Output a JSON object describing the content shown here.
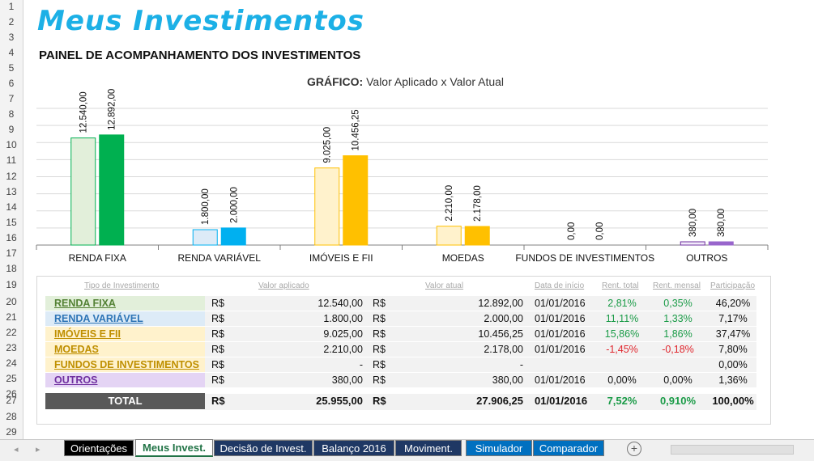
{
  "header": {
    "title": "Meus Investimentos",
    "subtitle": "PAINEL DE ACOMPANHAMENTO DOS INVESTIMENTOS",
    "chart_title_bold": "GRÁFICO:",
    "chart_title_rest": " Valor Aplicado x Valor Atual"
  },
  "row_numbers": [
    "1",
    "2",
    "3",
    "4",
    "5",
    "6",
    "7",
    "8",
    "9",
    "10",
    "11",
    "12",
    "13",
    "14",
    "15",
    "16",
    "17",
    "18",
    "19",
    "20",
    "21",
    "22",
    "23",
    "24",
    "25",
    "26",
    "27",
    "28",
    "29"
  ],
  "chart_data": {
    "type": "bar",
    "title": "GRÁFICO: Valor Aplicado x Valor Atual",
    "categories": [
      "RENDA FIXA",
      "RENDA VARIÁVEL",
      "IMÓVEIS E FII",
      "MOEDAS",
      "FUNDOS DE INVESTIMENTOS",
      "OUTROS"
    ],
    "series": [
      {
        "values": [
          12540.0,
          1800.0,
          9025.0,
          2210.0,
          0.0,
          380.0
        ]
      },
      {
        "values": [
          12892.0,
          2000.0,
          10456.25,
          2178.0,
          0.0,
          380.0
        ]
      }
    ],
    "labels": [
      [
        "12.540,00",
        "1.800,00",
        "9.025,00",
        "2.210,00",
        "0,00",
        "380,00"
      ],
      [
        "12.892,00",
        "2.000,00",
        "10.456,25",
        "2.178,00",
        "0,00",
        "380,00"
      ]
    ],
    "ylim": [
      0,
      16000
    ],
    "grid": true,
    "colors": {
      "applied_fill": [
        "#e2efda",
        "#ddebf7",
        "#fff2cc",
        "#fff2cc",
        "#ffffff",
        "#f2ebfa"
      ],
      "applied_stroke": [
        "#00b050",
        "#00b0f0",
        "#ffc000",
        "#ffc000",
        "#bfbfbf",
        "#7030a0"
      ],
      "current_fill": [
        "#00b050",
        "#00b0f0",
        "#ffc000",
        "#ffc000",
        "#ffffff",
        "#9966cc"
      ]
    }
  },
  "table": {
    "headers": {
      "tipo": "Tipo de Investimento",
      "aplicado": "Valor aplicado",
      "atual": "Valor atual",
      "data": "Data de início",
      "rent_total": "Rent. total",
      "rent_mensal": "Rent. mensal",
      "participacao": "Participação"
    },
    "rows": [
      {
        "tipo": "RENDA FIXA",
        "cur1": "R$",
        "aplicado": "12.540,00",
        "cur2": "R$",
        "atual": "12.892,00",
        "data": "01/01/2016",
        "rent_total": "2,81%",
        "rent_mensal": "0,35%",
        "participacao": "46,20%"
      },
      {
        "tipo": "RENDA VARIÁVEL",
        "cur1": "R$",
        "aplicado": "1.800,00",
        "cur2": "R$",
        "atual": "2.000,00",
        "data": "01/01/2016",
        "rent_total": "11,11%",
        "rent_mensal": "1,33%",
        "participacao": "7,17%"
      },
      {
        "tipo": "IMÓVEIS E FII",
        "cur1": "R$",
        "aplicado": "9.025,00",
        "cur2": "R$",
        "atual": "10.456,25",
        "data": "01/01/2016",
        "rent_total": "15,86%",
        "rent_mensal": "1,86%",
        "participacao": "37,47%"
      },
      {
        "tipo": "MOEDAS",
        "cur1": "R$",
        "aplicado": "2.210,00",
        "cur2": "R$",
        "atual": "2.178,00",
        "data": "01/01/2016",
        "rent_total": "-1,45%",
        "rent_mensal": "-0,18%",
        "participacao": "7,80%"
      },
      {
        "tipo": "FUNDOS DE INVESTIMENTOS",
        "cur1": "R$",
        "aplicado": "-",
        "cur2": "R$",
        "atual": "-",
        "data": "",
        "rent_total": "",
        "rent_mensal": "",
        "participacao": "0,00%"
      },
      {
        "tipo": "OUTROS",
        "cur1": "R$",
        "aplicado": "380,00",
        "cur2": "R$",
        "atual": "380,00",
        "data": "01/01/2016",
        "rent_total": "0,00%",
        "rent_mensal": "0,00%",
        "participacao": "1,36%"
      }
    ],
    "total": {
      "label": "TOTAL",
      "cur1": "R$",
      "aplicado": "25.955,00",
      "cur2": "R$",
      "atual": "27.906,25",
      "data": "01/01/2016",
      "rent_total": "7,52%",
      "rent_mensal": "0,910%",
      "participacao": "100,00%"
    }
  },
  "type_colors": {
    "box": [
      "#e2efda",
      "#ddebf7",
      "#fff2cc",
      "#fff2cc",
      "#fff2cc",
      "#e4d4f4"
    ],
    "text": [
      "#548235",
      "#2e75b6",
      "#bf8f00",
      "#bf8f00",
      "#bf8f00",
      "#7030a0"
    ]
  },
  "sheet_tabs": [
    {
      "label": "Orientações",
      "bg": "#000000"
    },
    {
      "label": "Meus Invest.",
      "bg": "#ffffff",
      "active": true
    },
    {
      "label": "Decisão de Invest.",
      "bg": "#1f3864"
    },
    {
      "label": "Balanço 2016",
      "bg": "#1f3864"
    },
    {
      "label": "Moviment.",
      "bg": "#1f3864"
    },
    {
      "label": "Simulador",
      "bg": "#0070c0"
    },
    {
      "label": "Comparador",
      "bg": "#0070c0"
    }
  ],
  "tab_controls": {
    "prev": "◂",
    "next": "▸",
    "add": "+"
  }
}
